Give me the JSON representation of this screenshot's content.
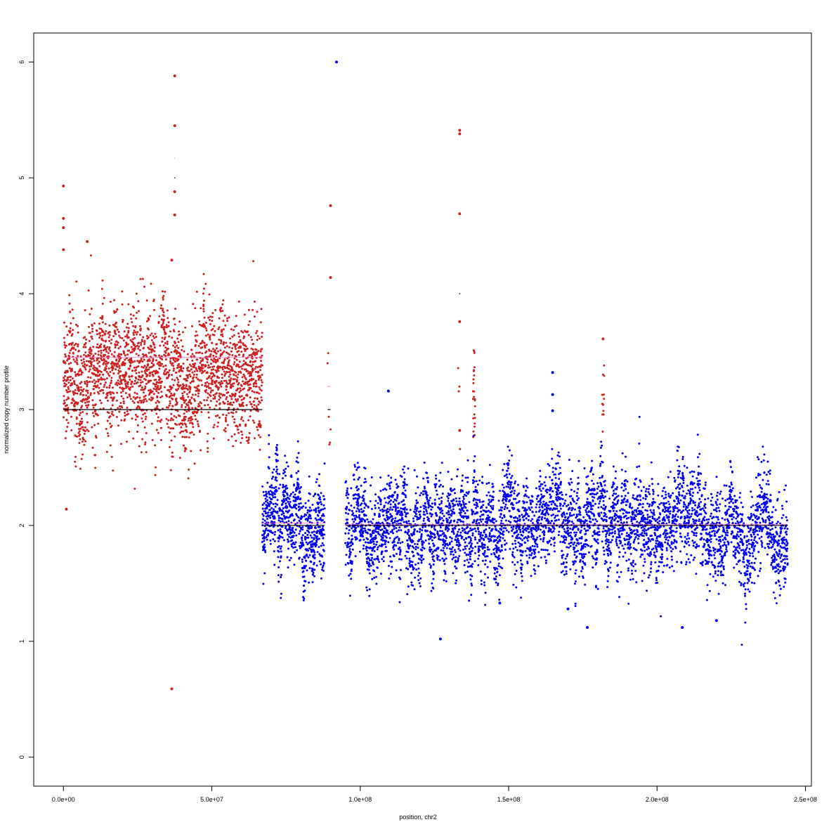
{
  "chart_data": {
    "type": "scatter",
    "title": "",
    "xlabel": "position, chr2",
    "ylabel": "normalized copy number profile",
    "xlim": [
      -10000000,
      252000000
    ],
    "ylim": [
      -0.25,
      6.25
    ],
    "x_ticks": [
      {
        "value": 0,
        "label": "0.0e+00"
      },
      {
        "value": 50000000,
        "label": "5.0e+07"
      },
      {
        "value": 100000000,
        "label": "1.0e+08"
      },
      {
        "value": 150000000,
        "label": "1.5e+08"
      },
      {
        "value": 200000000,
        "label": "2.0e+08"
      },
      {
        "value": 250000000,
        "label": "2.5e+08"
      }
    ],
    "y_ticks": [
      {
        "value": 0,
        "label": "0"
      },
      {
        "value": 1,
        "label": "1"
      },
      {
        "value": 2,
        "label": "2"
      },
      {
        "value": 3,
        "label": "3"
      },
      {
        "value": 4,
        "label": "4"
      },
      {
        "value": 5,
        "label": "5"
      },
      {
        "value": 6,
        "label": "6"
      }
    ],
    "grid": false,
    "legend": "none",
    "colors": {
      "gain": "#cc2222",
      "normal": "#0000ee",
      "segment": "#000000",
      "median": "#ff66cc"
    },
    "series": [
      {
        "color": "#cc2222",
        "x_range": [
          0,
          67000000
        ],
        "y_center": 3.3,
        "y_spread": 0.25,
        "n_points": 2400,
        "outliers": [
          {
            "x": 0,
            "y": 4.93
          },
          {
            "x": 0,
            "y": 4.65
          },
          {
            "x": 0,
            "y": 4.57
          },
          {
            "x": 0,
            "y": 4.38
          },
          {
            "x": 1000000,
            "y": 2.14
          },
          {
            "x": 8000000,
            "y": 4.45
          },
          {
            "x": 36500000,
            "y": 0.59
          },
          {
            "x": 37500000,
            "y": 5.88
          },
          {
            "x": 37500000,
            "y": 5.45
          },
          {
            "x": 37500000,
            "y": 4.88
          },
          {
            "x": 37500000,
            "y": 4.68
          },
          {
            "x": 36500000,
            "y": 4.29
          }
        ]
      },
      {
        "color": "#cc2222",
        "x_range": [
          89000000,
          90000000
        ],
        "y_center": 3.2,
        "y_spread": 0.3,
        "n_points": 6,
        "outliers": [
          {
            "x": 90000000,
            "y": 4.76
          },
          {
            "x": 90000000,
            "y": 4.14
          }
        ]
      },
      {
        "color": "#cc2222",
        "x_range": [
          133000000,
          133600000
        ],
        "y_center": 3.3,
        "y_spread": 0.3,
        "n_points": 4,
        "outliers": [
          {
            "x": 133500000,
            "y": 5.41
          },
          {
            "x": 133500000,
            "y": 5.38
          },
          {
            "x": 133500000,
            "y": 4.69
          },
          {
            "x": 133500000,
            "y": 3.76
          },
          {
            "x": 133500000,
            "y": 2.82
          }
        ]
      },
      {
        "color": "#cc2222",
        "x_range": [
          138000000,
          138700000
        ],
        "y_center": 3.1,
        "y_spread": 0.15,
        "n_points": 24,
        "outliers": []
      },
      {
        "color": "#cc2222",
        "x_range": [
          181500000,
          182200000
        ],
        "y_center": 3.1,
        "y_spread": 0.12,
        "n_points": 14,
        "outliers": [
          {
            "x": 181800000,
            "y": 3.61
          }
        ]
      },
      {
        "color": "#0000ee",
        "x_range": [
          67000000,
          88000000
        ],
        "y_center": 2.0,
        "y_spread": 0.17,
        "n_points": 750,
        "outliers": [
          {
            "x": 92000000,
            "y": 6.0
          }
        ]
      },
      {
        "color": "#0000ee",
        "x_range": [
          95000000,
          244000000
        ],
        "y_center": 2.0,
        "y_spread": 0.18,
        "n_points": 4600,
        "outliers": [
          {
            "x": 109500000,
            "y": 3.16
          },
          {
            "x": 164800000,
            "y": 3.32
          },
          {
            "x": 164800000,
            "y": 3.13
          },
          {
            "x": 164800000,
            "y": 2.99
          },
          {
            "x": 127000000,
            "y": 1.02
          },
          {
            "x": 176500000,
            "y": 1.12
          },
          {
            "x": 208500000,
            "y": 1.12
          },
          {
            "x": 220000000,
            "y": 1.18
          },
          {
            "x": 170000000,
            "y": 1.28
          },
          {
            "x": 147000000,
            "y": 1.33
          }
        ]
      }
    ],
    "segments": [
      {
        "x0": 0,
        "x1": 67000000,
        "y": 3.0
      },
      {
        "x0": 67000000,
        "x1": 88000000,
        "y": 2.0
      },
      {
        "x0": 89000000,
        "x1": 90000000,
        "y": 3.0
      },
      {
        "x0": 95000000,
        "x1": 244000000,
        "y": 2.0
      },
      {
        "x0": 37300000,
        "x1": 37700000,
        "y": 5.0
      },
      {
        "x0": 133300000,
        "x1": 133700000,
        "y": 4.0
      }
    ],
    "medians": [
      {
        "x0": 0,
        "x1": 67000000,
        "y": 3.45
      },
      {
        "x0": 67000000,
        "x1": 88000000,
        "y": 2.02
      },
      {
        "x0": 89000000,
        "x1": 90000000,
        "y": 3.2
      },
      {
        "x0": 37300000,
        "x1": 37700000,
        "y": 5.17
      },
      {
        "x0": 95000000,
        "x1": 244000000,
        "y": 2.01
      }
    ]
  }
}
